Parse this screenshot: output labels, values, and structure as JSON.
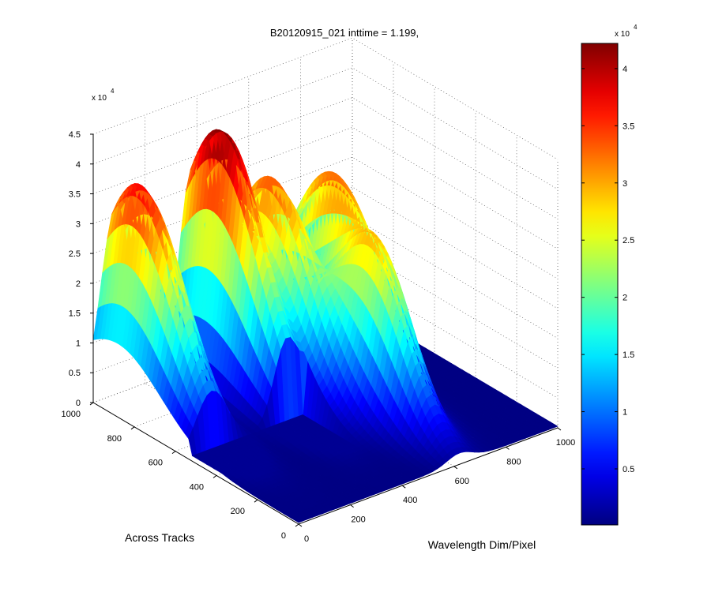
{
  "window": {
    "title": "B20120915_021 inttime = 1.199,"
  },
  "chart_data": {
    "type": "surface",
    "title": "B20120915_021 inttime = 1.199,",
    "xlabel": "Wavelength Dim/Pixel",
    "ylabel": "Across Tracks",
    "zlabel": "",
    "x_ticks": [
      "0",
      "200",
      "400",
      "600",
      "800",
      "1000"
    ],
    "y_ticks": [
      "0",
      "200",
      "400",
      "600",
      "800",
      "1000"
    ],
    "z_ticks": [
      "0",
      "0.5",
      "1",
      "1.5",
      "2",
      "2.5",
      "3",
      "3.5",
      "4",
      "4.5"
    ],
    "z_exponent": "x 10",
    "z_exponent_power": "4",
    "xlim": [
      0,
      1000
    ],
    "ylim": [
      0,
      1000
    ],
    "zlim": [
      0,
      45000
    ],
    "grid": "on",
    "colormap": "jet",
    "colorbar": {
      "location": "right",
      "ticks": [
        "0.5",
        "1",
        "1.5",
        "2",
        "2.5",
        "3",
        "3.5",
        "4"
      ],
      "exponent": "x 10",
      "exponent_power": "4",
      "range": [
        100,
        42200
      ]
    },
    "peaks": [
      {
        "x": 90,
        "y": 880,
        "z": 37500
      },
      {
        "x": 380,
        "y": 850,
        "z": 42500
      },
      {
        "x": 520,
        "y": 780,
        "z": 33000
      },
      {
        "x": 700,
        "y": 720,
        "z": 32000
      },
      {
        "x": 620,
        "y": 400,
        "z": 26000
      }
    ]
  }
}
